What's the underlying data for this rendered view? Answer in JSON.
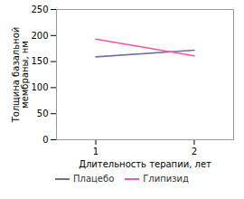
{
  "chart_data": {
    "type": "line",
    "xlabel": "Длительность терапии, лет",
    "ylabel": "Толщина базальной\nмембраны, нм",
    "x": [
      1,
      2
    ],
    "series": [
      {
        "name": "Плацебо",
        "color": "#7070a0",
        "values": [
          159,
          172
        ]
      },
      {
        "name": "Глипизид",
        "color": "#ff5599",
        "values": [
          193,
          161
        ]
      }
    ],
    "xlim": [
      0.6,
      2.4
    ],
    "xticks": [
      1,
      2
    ],
    "ylim": [
      0,
      250
    ],
    "yticks": [
      0,
      50,
      100,
      150,
      200,
      250
    ],
    "grid": false,
    "legend": "bottom"
  }
}
